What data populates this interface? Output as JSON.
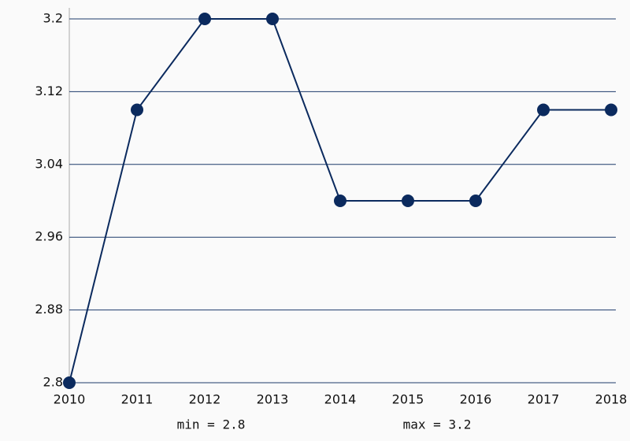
{
  "chart_data": {
    "type": "line",
    "categories": [
      "2010",
      "2011",
      "2012",
      "2013",
      "2014",
      "2015",
      "2016",
      "2017",
      "2018"
    ],
    "series": [
      {
        "color": "#0b2a5e",
        "values": [
          2.8,
          3.1,
          3.2,
          3.2,
          3.0,
          3.0,
          3.0,
          3.1,
          3.1
        ]
      }
    ],
    "ylim": [
      2.8,
      3.2
    ],
    "yticks": [
      2.8,
      2.88,
      2.96,
      3.04,
      3.12,
      3.2
    ],
    "grid": true,
    "annotations": [
      "min = 2.8",
      "max = 3.2"
    ]
  }
}
